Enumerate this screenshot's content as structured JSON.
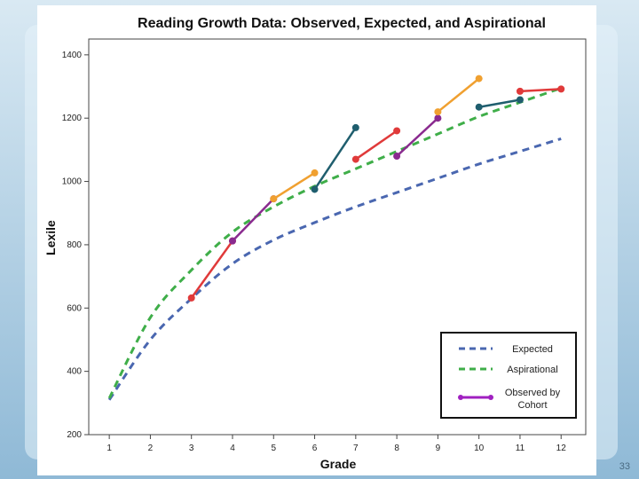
{
  "slide": {
    "page_number": "33"
  },
  "chart_data": {
    "type": "line",
    "title": "Reading Growth Data: Observed, Expected, and Aspirational",
    "xlabel": "Grade",
    "ylabel": "Lexile",
    "xlim": [
      0.5,
      12.6
    ],
    "ylim": [
      200,
      1450
    ],
    "x_ticks": [
      "1",
      "2",
      "3",
      "4",
      "5",
      "6",
      "7",
      "8",
      "9",
      "10",
      "11",
      "12"
    ],
    "y_ticks": [
      "200",
      "400",
      "600",
      "800",
      "1000",
      "1200",
      "1400"
    ],
    "series": [
      {
        "name": "Expected",
        "style": "dashed",
        "color": "#4a67b0",
        "x": [
          1,
          2,
          3,
          4,
          5,
          6,
          7,
          8,
          9,
          10,
          11,
          12
        ],
        "values": [
          310,
          500,
          630,
          740,
          815,
          870,
          920,
          965,
          1010,
          1055,
          1095,
          1135
        ]
      },
      {
        "name": "Aspirational",
        "style": "dashed",
        "color": "#3fae49",
        "x": [
          1,
          2,
          3,
          4,
          5,
          6,
          7,
          8,
          9,
          10,
          11,
          12
        ],
        "values": [
          315,
          570,
          720,
          840,
          920,
          985,
          1040,
          1095,
          1150,
          1205,
          1250,
          1295
        ]
      }
    ],
    "cohorts": [
      {
        "color": "#e03a3a",
        "x": [
          3,
          4
        ],
        "values": [
          632,
          812
        ]
      },
      {
        "color": "#8a2a8f",
        "x": [
          4,
          5
        ],
        "values": [
          812,
          945
        ]
      },
      {
        "color": "#f0a030",
        "x": [
          5,
          6
        ],
        "values": [
          945,
          1027
        ]
      },
      {
        "color": "#1f5e6e",
        "x": [
          6,
          7
        ],
        "values": [
          975,
          1170
        ]
      },
      {
        "color": "#e03a3a",
        "x": [
          7,
          8
        ],
        "values": [
          1070,
          1160
        ]
      },
      {
        "color": "#8a2a8f",
        "x": [
          8,
          9
        ],
        "values": [
          1080,
          1200
        ]
      },
      {
        "color": "#f0a030",
        "x": [
          9,
          10
        ],
        "values": [
          1220,
          1325
        ]
      },
      {
        "color": "#1f5e6e",
        "x": [
          10,
          11
        ],
        "values": [
          1235,
          1258
        ]
      },
      {
        "color": "#e03a3a",
        "x": [
          11,
          12
        ],
        "values": [
          1285,
          1292
        ]
      }
    ],
    "legend": {
      "placement": "bottom-right",
      "entries": [
        {
          "label": "Expected",
          "color": "#4a67b0",
          "style": "dashed"
        },
        {
          "label": "Aspirational",
          "color": "#3fae49",
          "style": "dashed"
        },
        {
          "label": "Observed by Cohort",
          "color": "#a020c0",
          "style": "solid-marker"
        }
      ]
    }
  }
}
